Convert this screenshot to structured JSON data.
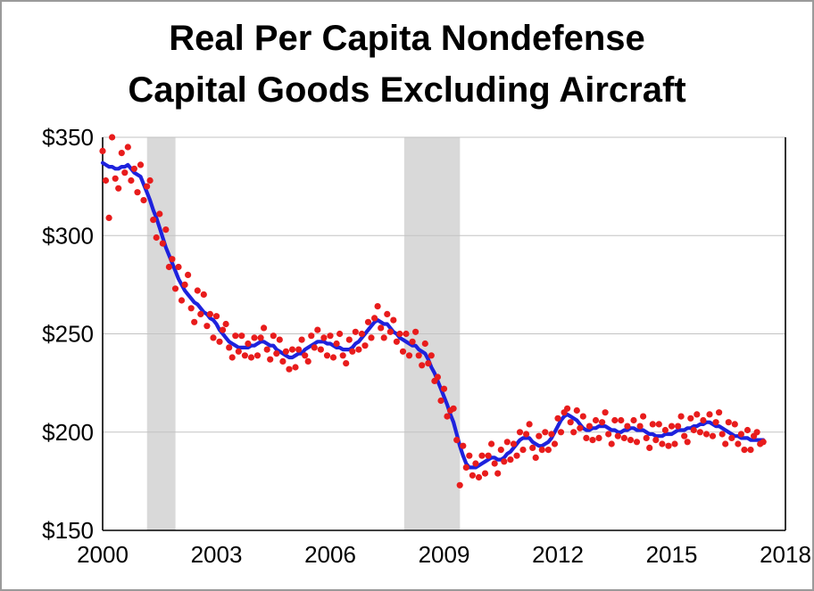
{
  "chart_data": {
    "type": "line+scatter",
    "title_line1": "Real Per Capita Nondefense",
    "title_line2": "Capital Goods Excluding Aircraft",
    "xlim": [
      2000,
      2018
    ],
    "ylim": [
      150,
      350
    ],
    "x_ticks": [
      2000,
      2003,
      2006,
      2009,
      2012,
      2015,
      2018
    ],
    "x_tick_labels": [
      "2000",
      "2003",
      "2006",
      "2009",
      "2012",
      "2015",
      "2018"
    ],
    "y_ticks": [
      150,
      200,
      250,
      300,
      350
    ],
    "y_tick_labels": [
      "$150",
      "$200",
      "$250",
      "$300",
      "$350"
    ],
    "grid": true,
    "legend": "none",
    "recession_bands": [
      [
        2001.17,
        2001.92
      ],
      [
        2007.95,
        2009.42
      ]
    ],
    "colors": {
      "line": "#1e22dd",
      "dots": "#e81c1c",
      "band": "#d9d9d9",
      "grid": "#c3c3c3",
      "axis": "#000000"
    },
    "x_start": 2000.0,
    "x_step": 0.0833333,
    "line_values": [
      337,
      336,
      335,
      335,
      334,
      334,
      335,
      335,
      336,
      334,
      332,
      331,
      330,
      326,
      322,
      318,
      313,
      309,
      304,
      299,
      294,
      290,
      286,
      282,
      278,
      275,
      272,
      270,
      268,
      266,
      265,
      263,
      261,
      260,
      258,
      257,
      255,
      252,
      250,
      248,
      246,
      245,
      244,
      243,
      243,
      243,
      243,
      244,
      244,
      245,
      246,
      246,
      245,
      244,
      244,
      242,
      241,
      240,
      239,
      238,
      238,
      239,
      240,
      240,
      242,
      243,
      244,
      245,
      246,
      246,
      246,
      245,
      245,
      244,
      243,
      243,
      242,
      242,
      242,
      243,
      245,
      246,
      248,
      250,
      252,
      254,
      256,
      257,
      256,
      255,
      255,
      253,
      251,
      250,
      248,
      247,
      246,
      245,
      244,
      244,
      242,
      241,
      240,
      237,
      233,
      230,
      226,
      222,
      218,
      214,
      209,
      205,
      199,
      193,
      188,
      184,
      182,
      182,
      182,
      183,
      184,
      185,
      186,
      187,
      187,
      186,
      186,
      187,
      189,
      190,
      192,
      194,
      196,
      197,
      197,
      197,
      195,
      194,
      193,
      193,
      194,
      195,
      197,
      200,
      203,
      206,
      208,
      209,
      208,
      207,
      206,
      204,
      202,
      201,
      201,
      202,
      202,
      203,
      203,
      203,
      202,
      201,
      201,
      200,
      200,
      201,
      201,
      202,
      202,
      201,
      201,
      201,
      200,
      199,
      199,
      198,
      198,
      198,
      199,
      199,
      199,
      200,
      201,
      201,
      201,
      202,
      202,
      203,
      203,
      204,
      204,
      205,
      205,
      204,
      203,
      203,
      202,
      201,
      200,
      199,
      198,
      198,
      197,
      197,
      197,
      196,
      196,
      196,
      196,
      196
    ],
    "scatter_values": [
      343,
      328,
      309,
      350,
      329,
      324,
      342,
      332,
      345,
      328,
      334,
      322,
      336,
      318,
      325,
      328,
      308,
      299,
      311,
      296,
      303,
      284,
      288,
      273,
      284,
      267,
      275,
      280,
      263,
      256,
      272,
      260,
      270,
      254,
      260,
      248,
      259,
      246,
      252,
      255,
      243,
      238,
      249,
      241,
      249,
      239,
      245,
      238,
      248,
      239,
      248,
      253,
      242,
      237,
      249,
      240,
      247,
      236,
      241,
      232,
      242,
      233,
      242,
      247,
      239,
      236,
      249,
      243,
      252,
      242,
      248,
      239,
      249,
      238,
      245,
      250,
      239,
      235,
      247,
      241,
      251,
      242,
      250,
      244,
      256,
      248,
      258,
      264,
      253,
      248,
      260,
      251,
      257,
      246,
      250,
      241,
      250,
      239,
      246,
      251,
      239,
      234,
      245,
      235,
      239,
      226,
      228,
      216,
      222,
      208,
      211,
      212,
      196,
      173,
      193,
      182,
      188,
      178,
      184,
      177,
      188,
      179,
      188,
      194,
      184,
      179,
      191,
      185,
      195,
      186,
      194,
      188,
      200,
      191,
      199,
      204,
      192,
      187,
      198,
      191,
      200,
      191,
      199,
      194,
      207,
      200,
      210,
      212,
      205,
      200,
      211,
      202,
      208,
      197,
      203,
      196,
      206,
      197,
      205,
      210,
      199,
      194,
      206,
      198,
      206,
      197,
      203,
      196,
      206,
      195,
      203,
      208,
      197,
      192,
      204,
      196,
      204,
      194,
      201,
      193,
      203,
      194,
      203,
      208,
      198,
      195,
      207,
      201,
      209,
      200,
      206,
      199,
      209,
      198,
      205,
      210,
      199,
      194,
      205,
      197,
      204,
      194,
      199,
      191,
      201,
      191,
      198,
      200,
      194,
      195
    ]
  }
}
